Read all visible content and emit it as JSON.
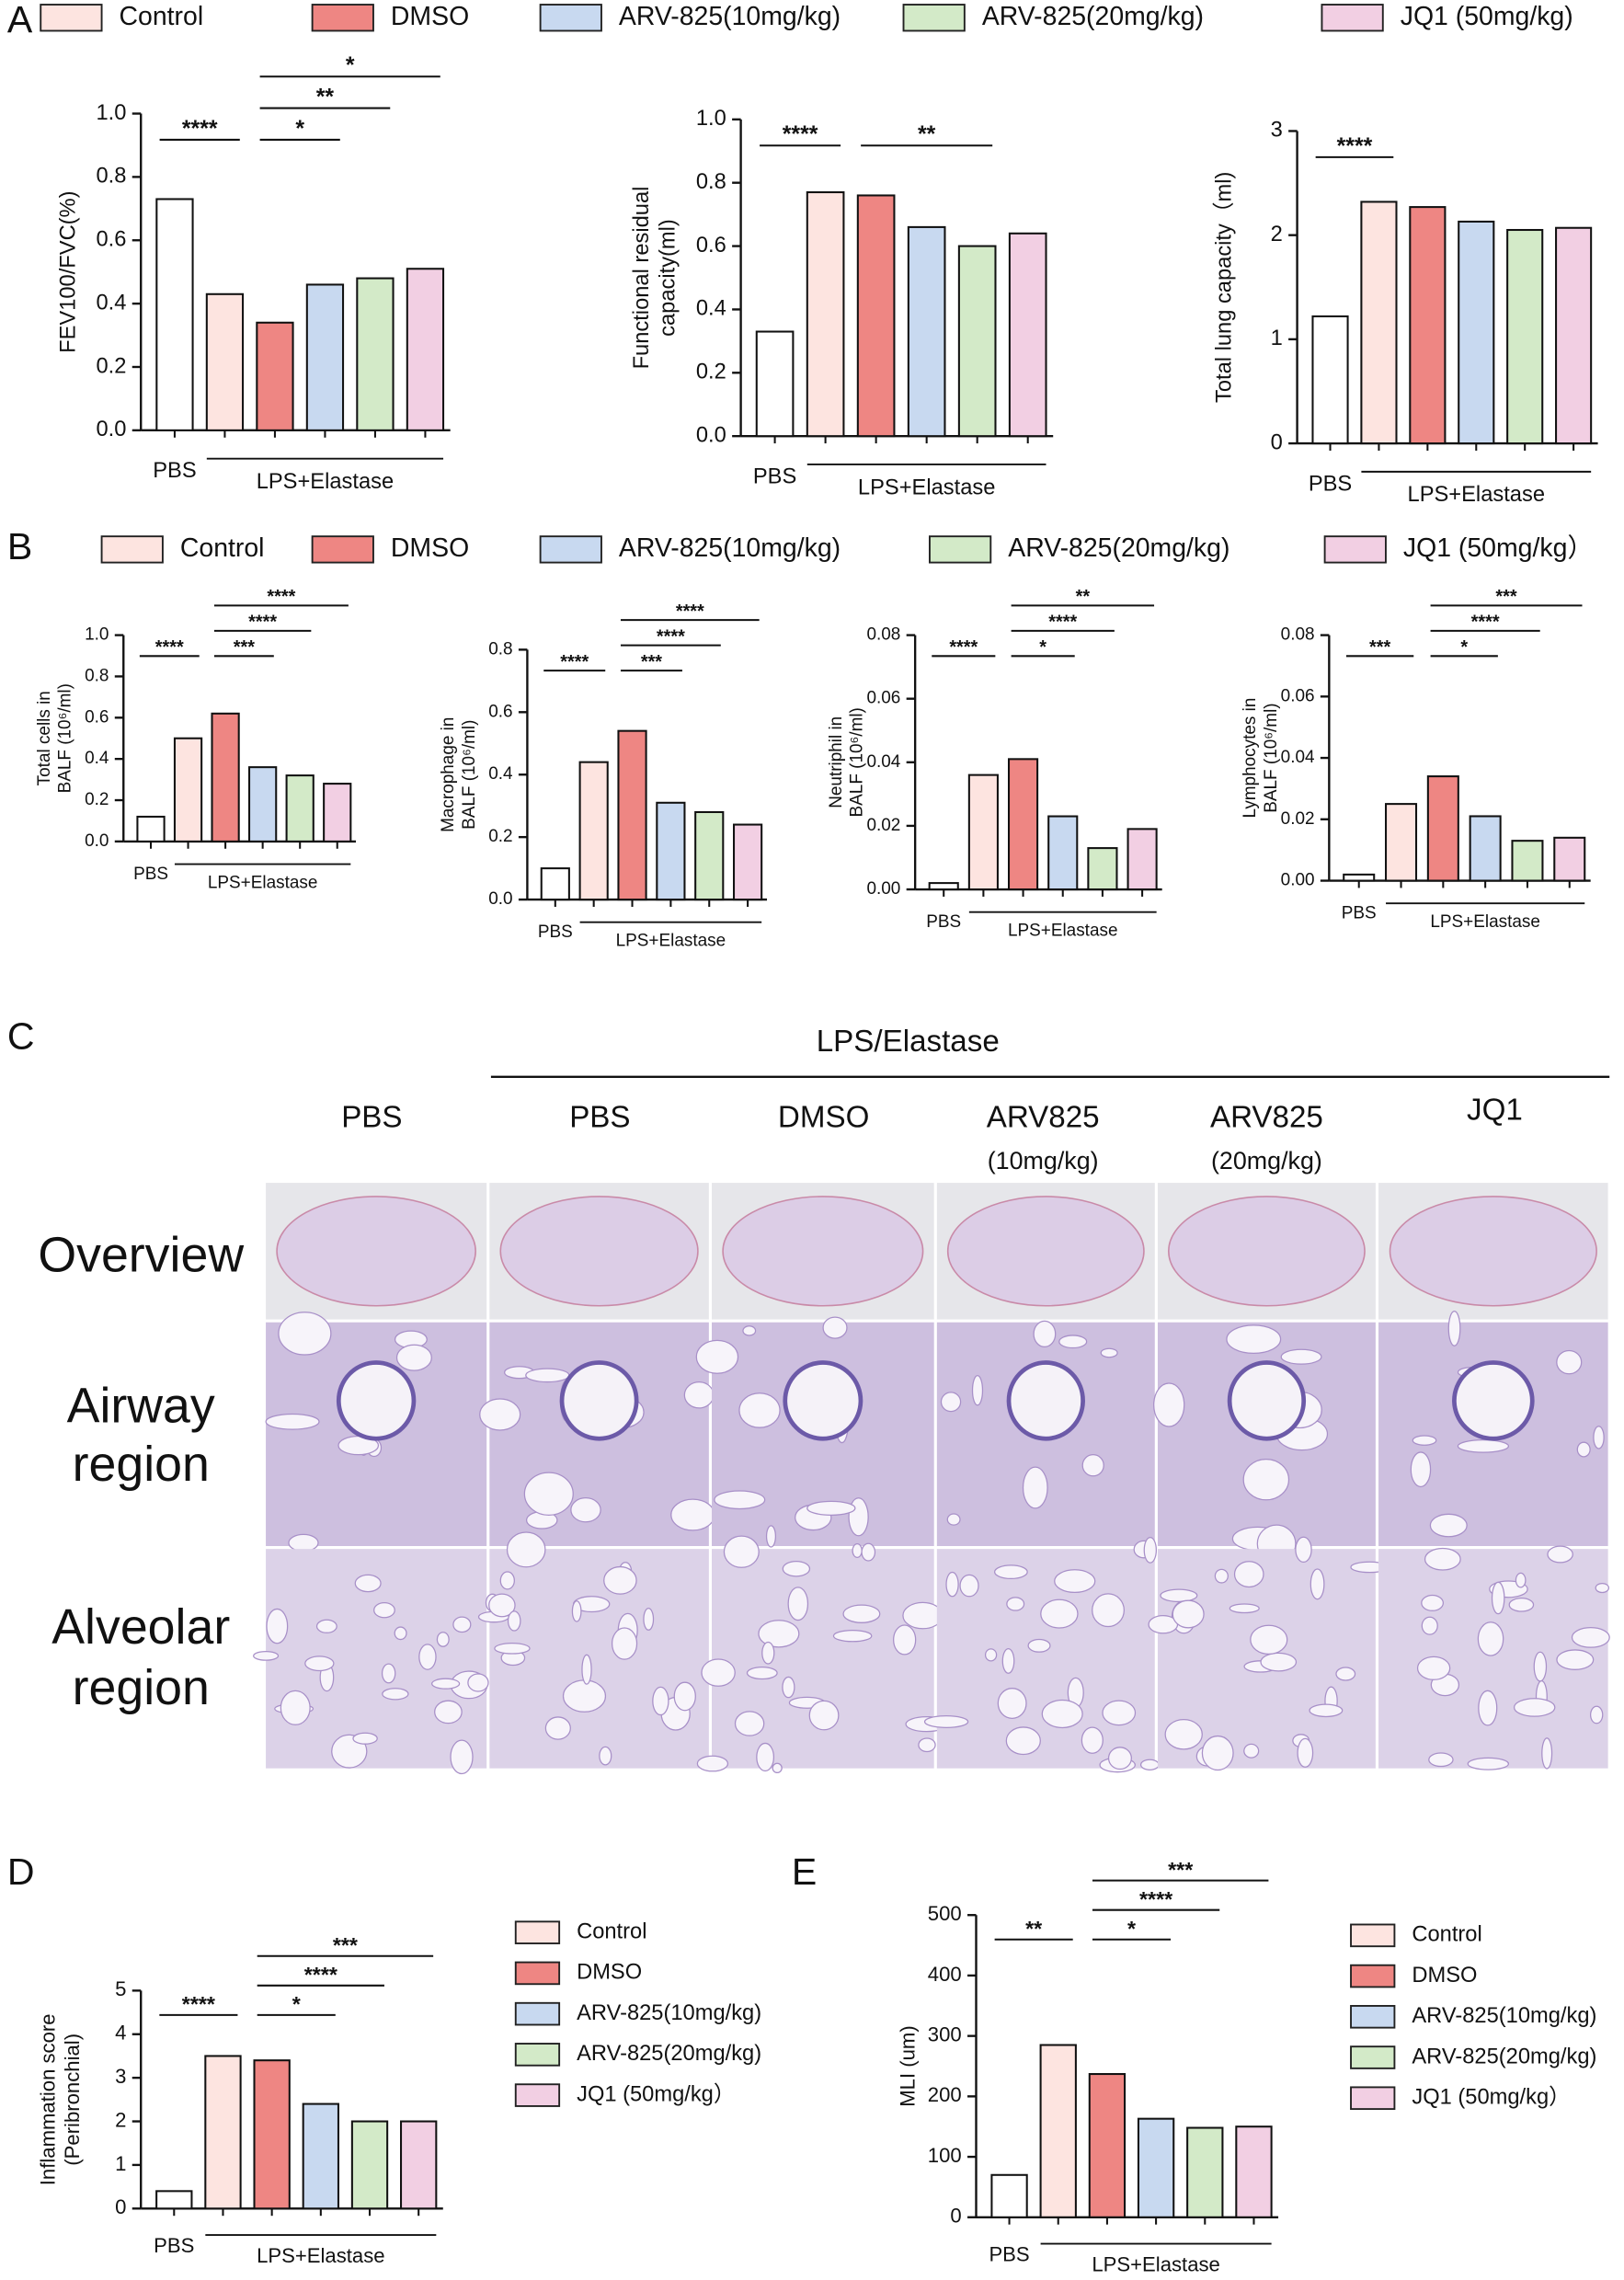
{
  "panel_labels": [
    "A",
    "B",
    "C",
    "D",
    "E"
  ],
  "legends": [
    {
      "names": [
        "Control",
        "DMSO",
        "ARV-825(10mg/kg)",
        "ARV-825(20mg/kg)",
        "JQ1 (50mg/kg)"
      ],
      "colors": [
        "#fde4e0",
        "#ee8683",
        "#c8d9f0",
        "#d3eac8",
        "#f2cfe3"
      ]
    },
    {
      "names": [
        "Control",
        "DMSO",
        "ARV-825(10mg/kg)",
        "ARV-825(20mg/kg)",
        "JQ1 (50mg/kg）"
      ],
      "colors": [
        "#fde4e0",
        "#ee8683",
        "#c8d9f0",
        "#d3eac8",
        "#f2cfe3"
      ]
    },
    {
      "names": [
        "Control",
        "DMSO",
        "ARV-825(10mg/kg)",
        "ARV-825(20mg/kg)",
        "JQ1 (50mg/kg）"
      ],
      "colors": [
        "#fde4e0",
        "#ee8683",
        "#c8d9f0",
        "#d3eac8",
        "#f2cfe3"
      ]
    },
    {
      "names": [
        "Control",
        "DMSO",
        "ARV-825(10mg/kg)",
        "ARV-825(20mg/kg)",
        "JQ1 (50mg/kg）"
      ],
      "colors": [
        "#fde4e0",
        "#ee8683",
        "#c8d9f0",
        "#d3eac8",
        "#f2cfe3"
      ]
    }
  ],
  "chart_data": [
    {
      "type": "bar",
      "ylabel": [
        "FEV100/FVC(%)"
      ],
      "categories": [
        "PBS",
        null,
        null,
        null,
        null,
        null
      ],
      "group_label": "LPS+Elastase",
      "values": [
        0.73,
        0.43,
        0.34,
        0.46,
        0.48,
        0.51
      ],
      "colors": [
        "#ffffff",
        "#fde4e0",
        "#ee8683",
        "#c8d9f0",
        "#d3eac8",
        "#f2cfe3"
      ],
      "ylim": [
        0,
        1
      ],
      "yticks": [
        {
          "value": 0,
          "label": "0.0"
        },
        0.2,
        0.4,
        0.6,
        0.8,
        {
          "value": 1,
          "label": "1.0"
        }
      ],
      "significance": [
        {
          "label": "****",
          "groups": [
            0,
            1
          ]
        },
        {
          "label": "*",
          "groups": [
            2,
            3
          ]
        },
        {
          "label": "**",
          "groups": [
            2,
            4
          ]
        },
        {
          "label": "*",
          "groups": [
            2,
            5
          ]
        }
      ]
    },
    {
      "type": "bar",
      "ylabel": [
        "Functional residual",
        "capacity(ml)"
      ],
      "categories": [
        "PBS",
        null,
        null,
        null,
        null,
        null
      ],
      "group_label": "LPS+Elastase",
      "values": [
        0.33,
        0.77,
        0.76,
        0.66,
        0.6,
        0.64
      ],
      "colors": [
        "#ffffff",
        "#fde4e0",
        "#ee8683",
        "#c8d9f0",
        "#d3eac8",
        "#f2cfe3"
      ],
      "ylim": [
        0,
        1
      ],
      "yticks": [
        {
          "value": 0,
          "label": "0.0"
        },
        0.2,
        0.4,
        0.6,
        0.8,
        {
          "value": 1,
          "label": "1.0"
        }
      ],
      "significance": [
        {
          "label": "****",
          "groups": [
            0,
            1
          ]
        },
        {
          "label": "**",
          "groups": [
            2,
            4
          ]
        }
      ]
    },
    {
      "type": "bar",
      "ylabel": [
        "Total lung capacity（ml)"
      ],
      "categories": [
        "PBS",
        null,
        null,
        null,
        null,
        null
      ],
      "group_label": "LPS+Elastase",
      "values": [
        1.22,
        2.32,
        2.27,
        2.13,
        2.05,
        2.07
      ],
      "colors": [
        "#ffffff",
        "#fde4e0",
        "#ee8683",
        "#c8d9f0",
        "#d3eac8",
        "#f2cfe3"
      ],
      "ylim": [
        0,
        3
      ],
      "yticks": [
        0,
        1,
        2,
        3
      ],
      "significance": [
        {
          "label": "****",
          "groups": [
            0,
            1
          ]
        }
      ]
    },
    {
      "type": "bar",
      "ylabel": [
        "Total cells in",
        "BALF (10⁶/ml)"
      ],
      "categories": [
        "PBS",
        null,
        null,
        null,
        null,
        null
      ],
      "group_label": "LPS+Elastase",
      "values": [
        0.12,
        0.5,
        0.62,
        0.36,
        0.32,
        0.28
      ],
      "colors": [
        "#ffffff",
        "#fde4e0",
        "#ee8683",
        "#c8d9f0",
        "#d3eac8",
        "#f2cfe3"
      ],
      "ylim": [
        0,
        1
      ],
      "yticks": [
        {
          "value": 0,
          "label": "0.0"
        },
        0.2,
        0.4,
        0.6,
        0.8,
        {
          "value": 1,
          "label": "1.0"
        }
      ],
      "significance": [
        {
          "label": "****",
          "groups": [
            0,
            1
          ]
        },
        {
          "label": "***",
          "groups": [
            2,
            3
          ]
        },
        {
          "label": "****",
          "groups": [
            2,
            4
          ]
        },
        {
          "label": "****",
          "groups": [
            2,
            5
          ]
        }
      ]
    },
    {
      "type": "bar",
      "ylabel": [
        "Macrophage in",
        "BALF (10⁶/ml)"
      ],
      "categories": [
        "PBS",
        null,
        null,
        null,
        null,
        null
      ],
      "group_label": "LPS+Elastase",
      "values": [
        0.1,
        0.44,
        0.54,
        0.31,
        0.28,
        0.24
      ],
      "colors": [
        "#ffffff",
        "#fde4e0",
        "#ee8683",
        "#c8d9f0",
        "#d3eac8",
        "#f2cfe3"
      ],
      "ylim": [
        0,
        0.8
      ],
      "yticks": [
        {
          "value": 0,
          "label": "0.0"
        },
        0.2,
        0.4,
        0.6,
        0.8
      ],
      "significance": [
        {
          "label": "****",
          "groups": [
            0,
            1
          ]
        },
        {
          "label": "***",
          "groups": [
            2,
            3
          ]
        },
        {
          "label": "****",
          "groups": [
            2,
            4
          ]
        },
        {
          "label": "****",
          "groups": [
            2,
            5
          ]
        }
      ]
    },
    {
      "type": "bar",
      "ylabel": [
        "Neutriphil in",
        "BALF (10⁶/ml)"
      ],
      "categories": [
        "PBS",
        null,
        null,
        null,
        null,
        null
      ],
      "group_label": "LPS+Elastase",
      "values": [
        0.002,
        0.036,
        0.041,
        0.023,
        0.013,
        0.019
      ],
      "colors": [
        "#ffffff",
        "#fde4e0",
        "#ee8683",
        "#c8d9f0",
        "#d3eac8",
        "#f2cfe3"
      ],
      "ylim": [
        0,
        0.08
      ],
      "yticks": [
        {
          "value": 0,
          "label": "0.00"
        },
        {
          "value": 0.02,
          "label": "0.02"
        },
        {
          "value": 0.04,
          "label": "0.04"
        },
        {
          "value": 0.06,
          "label": "0.06"
        },
        {
          "value": 0.08,
          "label": "0.08"
        }
      ],
      "significance": [
        {
          "label": "****",
          "groups": [
            0,
            1
          ]
        },
        {
          "label": "*",
          "groups": [
            2,
            3
          ]
        },
        {
          "label": "****",
          "groups": [
            2,
            4
          ]
        },
        {
          "label": "**",
          "groups": [
            2,
            5
          ]
        }
      ]
    },
    {
      "type": "bar",
      "ylabel": [
        "Lymphocytes in",
        "BALF (10⁶/ml)"
      ],
      "categories": [
        "PBS",
        null,
        null,
        null,
        null,
        null
      ],
      "group_label": "LPS+Elastase",
      "values": [
        0.002,
        0.025,
        0.034,
        0.021,
        0.013,
        0.014
      ],
      "colors": [
        "#ffffff",
        "#fde4e0",
        "#ee8683",
        "#c8d9f0",
        "#d3eac8",
        "#f2cfe3"
      ],
      "ylim": [
        0,
        0.08
      ],
      "yticks": [
        {
          "value": 0,
          "label": "0.00"
        },
        {
          "value": 0.02,
          "label": "0.02"
        },
        {
          "value": 0.04,
          "label": "0.04"
        },
        {
          "value": 0.06,
          "label": "0.06"
        },
        {
          "value": 0.08,
          "label": "0.08"
        }
      ],
      "significance": [
        {
          "label": "***",
          "groups": [
            0,
            1
          ]
        },
        {
          "label": "*",
          "groups": [
            2,
            3
          ]
        },
        {
          "label": "****",
          "groups": [
            2,
            4
          ]
        },
        {
          "label": "***",
          "groups": [
            2,
            5
          ]
        }
      ]
    },
    {
      "type": "bar",
      "ylabel": [
        "Inflammation score",
        "(Peribronchial)"
      ],
      "categories": [
        "PBS",
        null,
        null,
        null,
        null,
        null
      ],
      "group_label": "LPS+Elastase",
      "values": [
        0.4,
        3.5,
        3.4,
        2.4,
        2.0,
        2.0
      ],
      "colors": [
        "#ffffff",
        "#fde4e0",
        "#ee8683",
        "#c8d9f0",
        "#d3eac8",
        "#f2cfe3"
      ],
      "ylim": [
        0,
        5
      ],
      "yticks": [
        0,
        1,
        2,
        3,
        4,
        5
      ],
      "significance": [
        {
          "label": "****",
          "groups": [
            0,
            1
          ]
        },
        {
          "label": "*",
          "groups": [
            2,
            3
          ]
        },
        {
          "label": "****",
          "groups": [
            2,
            4
          ]
        },
        {
          "label": "***",
          "groups": [
            2,
            5
          ]
        }
      ]
    },
    {
      "type": "bar",
      "ylabel": [
        "MLI (um)"
      ],
      "categories": [
        "PBS",
        null,
        null,
        null,
        null,
        null
      ],
      "group_label": "LPS+Elastase",
      "values": [
        70,
        285,
        237,
        163,
        148,
        150
      ],
      "colors": [
        "#ffffff",
        "#fde4e0",
        "#ee8683",
        "#c8d9f0",
        "#d3eac8",
        "#f2cfe3"
      ],
      "ylim": [
        0,
        500
      ],
      "yticks": [
        0,
        100,
        200,
        300,
        400,
        500
      ],
      "significance": [
        {
          "label": "**",
          "groups": [
            0,
            1
          ]
        },
        {
          "label": "*",
          "groups": [
            2,
            3
          ]
        },
        {
          "label": "****",
          "groups": [
            2,
            4
          ]
        },
        {
          "label": "***",
          "groups": [
            2,
            5
          ]
        }
      ]
    }
  ],
  "histology": {
    "group_label": "LPS/Elastase",
    "columns": [
      [
        "PBS"
      ],
      [
        "PBS"
      ],
      [
        "DMSO"
      ],
      [
        "ARV825",
        "(10mg/kg)"
      ],
      [
        "ARV825",
        "(20mg/kg)"
      ],
      [
        "JQ1"
      ]
    ],
    "rows": [
      [
        "Overview"
      ],
      [
        "Airway",
        "region"
      ],
      [
        "Alveolar",
        "region"
      ]
    ]
  }
}
